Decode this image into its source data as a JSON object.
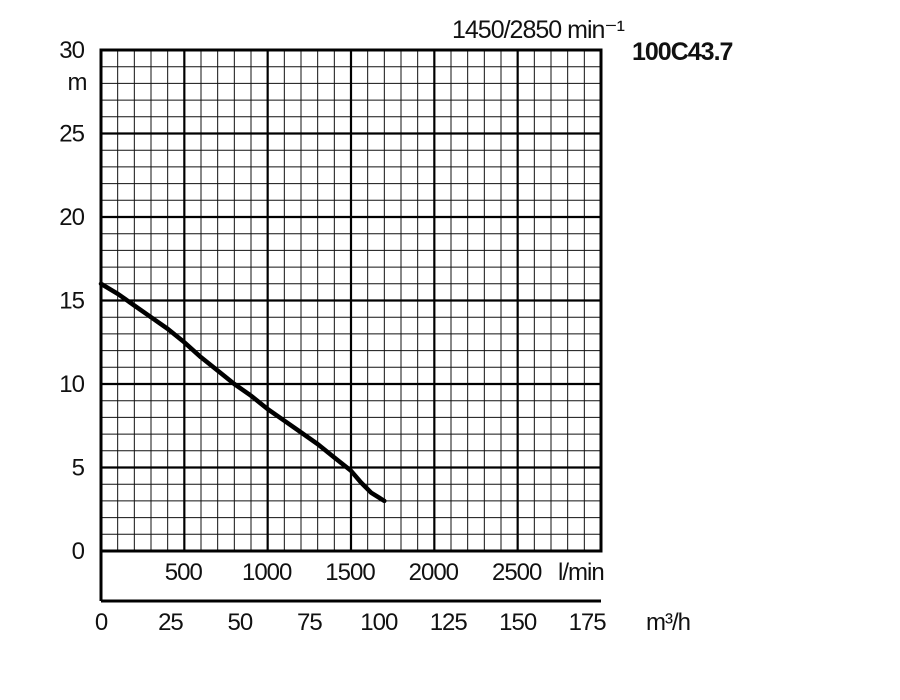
{
  "header": {
    "speed": "1450/2850 min⁻¹",
    "model": "100C43.7"
  },
  "chart_data": {
    "type": "line",
    "ylabel": "m",
    "ylim": [
      0,
      30
    ],
    "y_ticks": [
      "0",
      "5",
      "10",
      "15",
      "20",
      "25",
      "30"
    ],
    "x_lmin_ticks": [
      "500",
      "1000",
      "1500",
      "2000",
      "2500"
    ],
    "x_lmin_unit": "l/min",
    "x_m3h_ticks": [
      "0",
      "25",
      "50",
      "75",
      "100",
      "125",
      "150",
      "175"
    ],
    "x_m3h_unit": "m³/h",
    "xlim_lmin": [
      0,
      3000
    ],
    "grid": true,
    "series": [
      {
        "x": [
          0,
          100,
          200,
          300,
          400,
          500,
          600,
          700,
          800,
          900,
          1000,
          1100,
          1200,
          1300,
          1400,
          1500,
          1560,
          1620,
          1700
        ],
        "y": [
          16.0,
          15.4,
          14.7,
          14.0,
          13.3,
          12.5,
          11.6,
          10.8,
          10.0,
          9.3,
          8.5,
          7.8,
          7.1,
          6.4,
          5.6,
          4.8,
          4.1,
          3.5,
          3.0
        ]
      }
    ]
  }
}
